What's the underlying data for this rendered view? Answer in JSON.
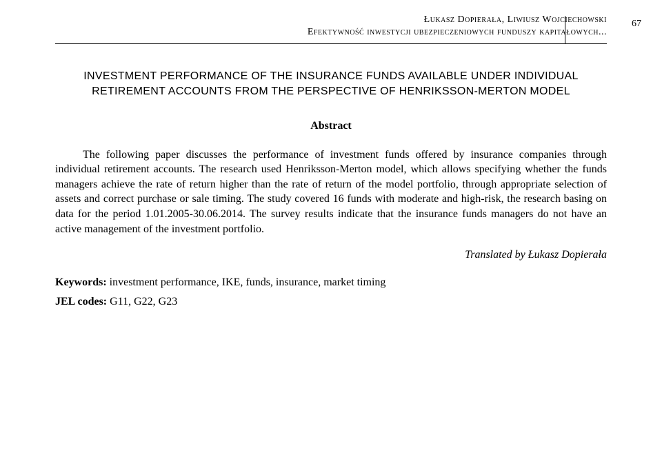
{
  "header": {
    "authors": "Łukasz Dopierała, Liwiusz Wojciechowski",
    "running": "Efektywność inwestycji ubezpieczeniowych funduszy kapitałowych...",
    "page": "67"
  },
  "title": {
    "line1": "INVESTMENT PERFORMANCE OF THE INSURANCE FUNDS AVAILABLE UNDER INDIVIDUAL",
    "line2": "RETIREMENT ACCOUNTS FROM THE PERSPECTIVE OF HENRIKSSON-MERTON MODEL"
  },
  "abstract": {
    "heading": "Abstract",
    "body": "The following paper discusses the performance of investment funds offered by insurance companies through individual retirement accounts. The research used Henriksson-Merton model, which allows specifying whether the funds managers achieve the rate of return higher than the rate of return of the model portfolio, through appropriate selection of assets and correct purchase or sale timing. The study covered 16 funds with moderate and high-risk, the research basing on data for the period 1.01.2005-30.06.2014. The survey results indicate that the insurance funds managers do not have an active management of the investment portfolio."
  },
  "translated": "Translated by Łukasz Dopierała",
  "keywords": {
    "label": "Keywords:",
    "text": " investment performance, IKE, funds, insurance, market timing"
  },
  "jel": {
    "label": "JEL codes:",
    "text": " G11, G22, G23"
  }
}
